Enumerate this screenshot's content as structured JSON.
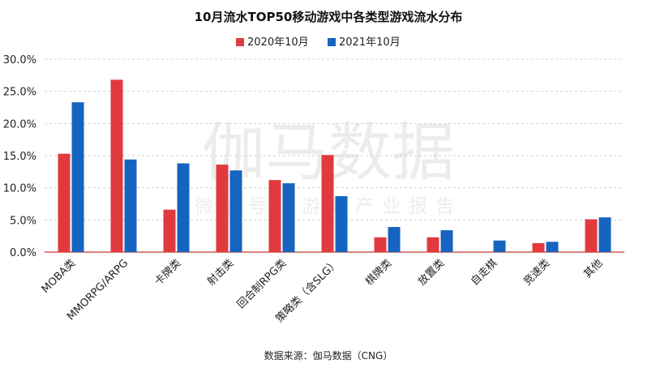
{
  "watermark": {
    "main": "伽马数据",
    "sub": "微信号：游戏产业报告"
  },
  "colors": {
    "series_2020": "#e03a3e",
    "series_2021": "#1565c0",
    "grid": "#d0d0d0",
    "axis": "#c0392b"
  },
  "chart_data": {
    "type": "bar",
    "title": "10月流水TOP50移动游戏中各类型游戏流水分布",
    "categories": [
      "MOBA类",
      "MMORPG/ARPG",
      "卡牌类",
      "射击类",
      "回合制RPG类",
      "策略类（含SLG）",
      "棋牌类",
      "放置类",
      "自走棋",
      "竞速类",
      "其他"
    ],
    "series": [
      {
        "name": "2020年10月",
        "values": [
          15.3,
          26.8,
          6.6,
          13.6,
          11.2,
          15.1,
          2.3,
          2.3,
          0,
          1.4,
          5.1
        ]
      },
      {
        "name": "2021年10月",
        "values": [
          23.3,
          14.4,
          13.8,
          12.7,
          10.7,
          8.7,
          3.9,
          3.4,
          1.8,
          1.6,
          5.4
        ]
      }
    ],
    "ylim": [
      0,
      30
    ],
    "yticks": [
      "0.0%",
      "5.0%",
      "10.0%",
      "15.0%",
      "20.0%",
      "25.0%",
      "30.0%"
    ],
    "grid": true,
    "legend": "top",
    "source": "数据来源：伽马数据（CNG）"
  }
}
